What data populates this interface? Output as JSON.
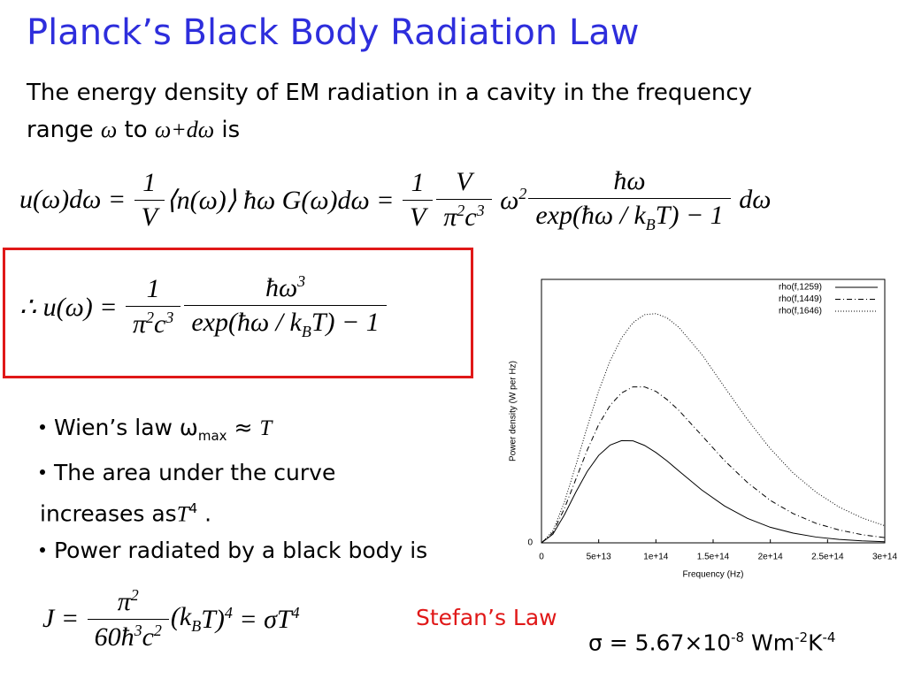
{
  "title": "Planck’s Black Body Radiation Law",
  "intro": [
    {
      "text": "The energy density of EM radiation in a cavity in the frequency range "
    },
    {
      "math": "ω"
    },
    {
      "text": " to "
    },
    {
      "math": "ω+dω"
    },
    {
      "text": " is"
    }
  ],
  "eq1": [
    {
      "text": "u(ω)dω = "
    },
    {
      "num": [
        {
          "text": "1"
        }
      ],
      "den": [
        {
          "text": "V"
        }
      ]
    },
    {
      "text": "⟨n(ω)⟩ ħω G(ω)dω = "
    },
    {
      "num": [
        {
          "text": "1"
        }
      ],
      "den": [
        {
          "text": "V"
        }
      ]
    },
    {
      "num": [
        {
          "text": "V"
        }
      ],
      "den": [
        {
          "text": "π",
          "sup": "2"
        },
        {
          "text": "c",
          "sup": "3"
        }
      ]
    },
    {
      "text": " ω",
      "sup": "2"
    },
    {
      "num": [
        {
          "text": "ħω"
        }
      ],
      "den": [
        {
          "text": "exp(ħω / k",
          "sub": "B"
        },
        {
          "text": "T) − 1"
        }
      ]
    },
    {
      "text": " dω"
    }
  ],
  "eq2": [
    {
      "text": "∴ u(ω) = "
    },
    {
      "num": [
        {
          "text": "1"
        }
      ],
      "den": [
        {
          "text": "π",
          "sup": "2"
        },
        {
          "text": "c",
          "sup": "3"
        }
      ]
    },
    {
      "num": [
        {
          "text": "ħω",
          "sup": "3"
        }
      ],
      "den": [
        {
          "text": "exp(ħω / k",
          "sub": "B"
        },
        {
          "text": "T) − 1"
        }
      ]
    }
  ],
  "bullets": [
    [
      {
        "text": "Wien’s law ω",
        "sub": "max"
      },
      {
        "text": " ≈ "
      },
      {
        "math": "T"
      }
    ],
    [
      {
        "text": "The area under the curve increases as"
      },
      {
        "math": "T",
        "sup": "4"
      },
      {
        "text": " ."
      }
    ],
    [
      {
        "text": "Power radiated by a black body is"
      }
    ]
  ],
  "eq3": [
    {
      "text": "J = "
    },
    {
      "num": [
        {
          "text": "π",
          "sup": "2"
        }
      ],
      "den": [
        {
          "text": "60ħ",
          "sup": "3"
        },
        {
          "text": "c",
          "sup": "2"
        }
      ]
    },
    {
      "text": "(k",
      "sub": "B"
    },
    {
      "text": "T)",
      "sup": "4"
    },
    {
      "text": " = σT",
      "sup": "4"
    }
  ],
  "law_label": "Stefan’s Law",
  "sigma": [
    {
      "text": "σ = 5.67×10",
      "sup": "-8"
    },
    {
      "text": " Wm",
      "sup": "-2"
    },
    {
      "text": "K",
      "sup": "-4"
    }
  ],
  "plot": {
    "type": "line",
    "xlabel": "Frequency (Hz)",
    "ylabel": "Power density (W per Hz)",
    "x": [
      0,
      10000000000000.0,
      20000000000000.0,
      30000000000000.0,
      40000000000000.0,
      50000000000000.0,
      60000000000000.0,
      70000000000000.0,
      80000000000000.0,
      90000000000000.0,
      100000000000000.0,
      110000000000000.0,
      120000000000000.0,
      140000000000000.0,
      160000000000000.0,
      180000000000000.0,
      200000000000000.0,
      220000000000000.0,
      240000000000000.0,
      260000000000000.0,
      280000000000000.0,
      300000000000000.0
    ],
    "series": [
      {
        "name": "rho(f,1259)",
        "color": "#000000",
        "dash": "solid",
        "values": [
          0,
          0.033,
          0.106,
          0.192,
          0.271,
          0.332,
          0.371,
          0.388,
          0.387,
          0.37,
          0.343,
          0.31,
          0.273,
          0.201,
          0.14,
          0.093,
          0.059,
          0.037,
          0.022,
          0.013,
          0.0077,
          0.0044
        ]
      },
      {
        "name": "rho(f,1449)",
        "color": "#000000",
        "dash": "dashdot",
        "values": [
          0,
          0.039,
          0.13,
          0.241,
          0.352,
          0.449,
          0.522,
          0.569,
          0.592,
          0.592,
          0.575,
          0.543,
          0.503,
          0.408,
          0.312,
          0.229,
          0.161,
          0.111,
          0.074,
          0.049,
          0.031,
          0.02
        ]
      },
      {
        "name": "rho(f,1646)",
        "color": "#000000",
        "dash": "dotted",
        "values": [
          0,
          0.045,
          0.154,
          0.294,
          0.44,
          0.577,
          0.691,
          0.778,
          0.836,
          0.866,
          0.87,
          0.853,
          0.818,
          0.716,
          0.591,
          0.468,
          0.357,
          0.265,
          0.192,
          0.136,
          0.095,
          0.065
        ]
      }
    ],
    "xlim": [
      0,
      300000000000000.0
    ],
    "ylim": [
      0,
      1
    ],
    "xticks": [
      0,
      {
        "value": 50000000000000.0,
        "label": "5e+13"
      },
      {
        "value": 100000000000000.0,
        "label": "1e+14"
      },
      {
        "value": 150000000000000.0,
        "label": "1.5e+14"
      },
      {
        "value": 200000000000000.0,
        "label": "2e+14"
      },
      {
        "value": 250000000000000.0,
        "label": "2.5e+14"
      },
      {
        "value": 300000000000000.0,
        "label": "3e+14"
      }
    ],
    "yticks": [
      0
    ],
    "legend": "upper right"
  }
}
